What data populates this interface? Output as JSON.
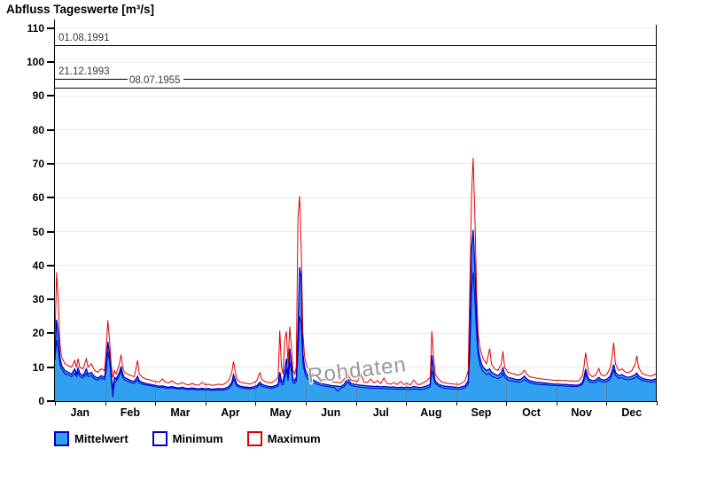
{
  "title": "Abfluss Tageswerte [m³/s]",
  "watermark": "Rohdaten",
  "colors": {
    "area_fill": "#31A0F0",
    "blue_line": "#0000CC",
    "red_line": "#DE0000",
    "grid": "#EAEAEA",
    "axis": "#000000",
    "annotation_text": "#3A3A3A",
    "watermark": "#979797"
  },
  "legend": [
    {
      "label": "Mittelwert",
      "swatch_fill": "#31A0F0",
      "swatch_border": "#0000CC"
    },
    {
      "label": "Minimum",
      "swatch_fill": "#FFFFFF",
      "swatch_border": "#0000CC"
    },
    {
      "label": "Maximum",
      "swatch_fill": "#FFFFFF",
      "swatch_border": "#DE0000"
    }
  ],
  "chart_data": {
    "type": "area",
    "title": "Abfluss Tageswerte [m³/s]",
    "xlabel": "",
    "ylabel": "m³/s",
    "ylim": [
      0,
      110
    ],
    "y_ticks": [
      0,
      10,
      20,
      30,
      40,
      50,
      60,
      70,
      80,
      90,
      100,
      110
    ],
    "x_categories": [
      "Jan",
      "Feb",
      "Mar",
      "Apr",
      "May",
      "Jun",
      "Jul",
      "Aug",
      "Sep",
      "Oct",
      "Nov",
      "Dec"
    ],
    "x_range_days": [
      1,
      365
    ],
    "grid": "horizontal",
    "legend_position": "bottom",
    "annotations": [
      {
        "label": "01.08.1991",
        "value": 105,
        "label_offset": 2
      },
      {
        "label": "21.12.1993",
        "value": 95,
        "label_offset": 2
      },
      {
        "label": "08.07.1955",
        "value": 92.5,
        "label_offset": 82
      }
    ],
    "series_names": [
      "Minimum",
      "Mittelwert",
      "Maximum"
    ],
    "points_format": [
      "day_of_year",
      "minimum",
      "mittelwert",
      "maximum"
    ],
    "points": [
      [
        1,
        12,
        14,
        18
      ],
      [
        2,
        18,
        24,
        38
      ],
      [
        3,
        15,
        20,
        30
      ],
      [
        4,
        11,
        13,
        17
      ],
      [
        5,
        9.5,
        10.5,
        13
      ],
      [
        7,
        8,
        9,
        11
      ],
      [
        9,
        7.8,
        8.5,
        10.5
      ],
      [
        11,
        7.2,
        8,
        10
      ],
      [
        13,
        8.2,
        9.5,
        12
      ],
      [
        14,
        7.2,
        8,
        10
      ],
      [
        15,
        8.5,
        9.8,
        12.5
      ],
      [
        16,
        7.3,
        8.2,
        10
      ],
      [
        18,
        6.8,
        7.5,
        9.5
      ],
      [
        20,
        8.2,
        9.5,
        12.5
      ],
      [
        21,
        7.2,
        8,
        10
      ],
      [
        23,
        7.5,
        8.5,
        11
      ],
      [
        25,
        6.5,
        7.2,
        9
      ],
      [
        27,
        6.2,
        6.8,
        8.5
      ],
      [
        29,
        6.8,
        7.5,
        9.5
      ],
      [
        31,
        6.3,
        7,
        9
      ],
      [
        32,
        9,
        11,
        15
      ],
      [
        33,
        14.5,
        17.5,
        23.8
      ],
      [
        34,
        12,
        14,
        18
      ],
      [
        35,
        6.5,
        8,
        11
      ],
      [
        36,
        1.2,
        3.5,
        7
      ],
      [
        37,
        5.5,
        7,
        9
      ],
      [
        38,
        5.8,
        6.5,
        8
      ],
      [
        40,
        7.5,
        8.5,
        11
      ],
      [
        41,
        9,
        10.2,
        13.7
      ],
      [
        42,
        7,
        8,
        10
      ],
      [
        43,
        6.3,
        7,
        8.5
      ],
      [
        45,
        5.9,
        6.5,
        8
      ],
      [
        47,
        5.4,
        6,
        7.5
      ],
      [
        49,
        5.2,
        5.8,
        7.2
      ],
      [
        51,
        6.3,
        7.3,
        12
      ],
      [
        52,
        5.4,
        6,
        8
      ],
      [
        54,
        5,
        5.5,
        7
      ],
      [
        56,
        4.8,
        5.2,
        6.5
      ],
      [
        58,
        4.6,
        5,
        6.3
      ],
      [
        60,
        4.4,
        4.8,
        6
      ],
      [
        62,
        4.2,
        4.6,
        5.8
      ],
      [
        64,
        4,
        4.4,
        5.6
      ],
      [
        66,
        4.1,
        4.5,
        6.5
      ],
      [
        68,
        3.8,
        4.2,
        5.5
      ],
      [
        70,
        3.8,
        4.1,
        5.4
      ],
      [
        72,
        3.9,
        4.3,
        6
      ],
      [
        74,
        3.7,
        4,
        5.2
      ],
      [
        76,
        3.6,
        3.9,
        5
      ],
      [
        78,
        3.7,
        4.1,
        5.5
      ],
      [
        80,
        3.5,
        3.8,
        5
      ],
      [
        82,
        3.4,
        3.7,
        4.8
      ],
      [
        84,
        3.5,
        3.9,
        5.2
      ],
      [
        86,
        3.4,
        3.7,
        4.8
      ],
      [
        88,
        3.3,
        3.6,
        4.7
      ],
      [
        90,
        3.4,
        3.8,
        5.5
      ],
      [
        92,
        3.3,
        3.6,
        4.8
      ],
      [
        94,
        3.3,
        3.7,
        5
      ],
      [
        96,
        3.2,
        3.5,
        4.6
      ],
      [
        98,
        3.2,
        3.6,
        4.8
      ],
      [
        100,
        3.3,
        3.7,
        5
      ],
      [
        102,
        3.2,
        3.6,
        4.8
      ],
      [
        104,
        3.4,
        3.8,
        5.2
      ],
      [
        106,
        3.7,
        4.2,
        6
      ],
      [
        108,
        4.8,
        5.5,
        8.5
      ],
      [
        109,
        6.5,
        7.8,
        11.7
      ],
      [
        110,
        5.5,
        6.5,
        9
      ],
      [
        111,
        4.4,
        5,
        6.5
      ],
      [
        113,
        4,
        4.4,
        5.6
      ],
      [
        115,
        3.8,
        4.2,
        5.4
      ],
      [
        117,
        3.7,
        4.1,
        5.2
      ],
      [
        119,
        3.6,
        4,
        5
      ],
      [
        121,
        3.7,
        4.2,
        5.4
      ],
      [
        123,
        4,
        4.5,
        6
      ],
      [
        125,
        4.9,
        5.6,
        8.4
      ],
      [
        126,
        4.4,
        5,
        6.5
      ],
      [
        128,
        4.1,
        4.6,
        5.8
      ],
      [
        130,
        3.9,
        4.4,
        5.5
      ],
      [
        132,
        3.8,
        4.2,
        5.4
      ],
      [
        134,
        4,
        4.5,
        6
      ],
      [
        136,
        4.4,
        5,
        7
      ],
      [
        137,
        6.5,
        8.5,
        20.8
      ],
      [
        138,
        5,
        6,
        10
      ],
      [
        139,
        4.8,
        5.5,
        8
      ],
      [
        140,
        7,
        9,
        18
      ],
      [
        141,
        9.5,
        12.5,
        20.5
      ],
      [
        142,
        6,
        7,
        11
      ],
      [
        143,
        11.5,
        15.5,
        22
      ],
      [
        144,
        9,
        11,
        16
      ],
      [
        145,
        5.5,
        6.5,
        9
      ],
      [
        146,
        5.2,
        6,
        8
      ],
      [
        147,
        5.8,
        7,
        10
      ],
      [
        148,
        14,
        20,
        54
      ],
      [
        149,
        25,
        39.5,
        60.5
      ],
      [
        150,
        23,
        36,
        45
      ],
      [
        151,
        11,
        14,
        20
      ],
      [
        152,
        8.5,
        10,
        13
      ],
      [
        153,
        7.2,
        8.5,
        11
      ],
      [
        154,
        6.5,
        7.5,
        9.5
      ],
      [
        156,
        5.8,
        6.5,
        8.5
      ],
      [
        158,
        5.3,
        6,
        7.5
      ],
      [
        160,
        4.9,
        5.5,
        7
      ],
      [
        162,
        4.6,
        5.2,
        6.5
      ],
      [
        164,
        4.4,
        5,
        6.3
      ],
      [
        166,
        4.3,
        4.8,
        6
      ],
      [
        168,
        4.1,
        4.6,
        5.8
      ],
      [
        170,
        4,
        4.5,
        5.6
      ],
      [
        172,
        2.9,
        4.4,
        5.5
      ],
      [
        174,
        3.8,
        4.3,
        5.4
      ],
      [
        176,
        4.3,
        5,
        6.5
      ],
      [
        178,
        5.6,
        6.8,
        8.3
      ],
      [
        179,
        5.2,
        6,
        7
      ],
      [
        180,
        4.6,
        5.2,
        6.2
      ],
      [
        182,
        4.4,
        5,
        6
      ],
      [
        184,
        4.2,
        4.8,
        5.8
      ],
      [
        186,
        4.1,
        4.7,
        8
      ],
      [
        188,
        4,
        4.6,
        5.6
      ],
      [
        190,
        3.9,
        4.5,
        5.5
      ],
      [
        192,
        3.8,
        4.4,
        6.5
      ],
      [
        194,
        3.8,
        4.3,
        5.4
      ],
      [
        196,
        3.8,
        4.4,
        6
      ],
      [
        198,
        3.7,
        4.2,
        5.2
      ],
      [
        200,
        3.7,
        4.3,
        6.8
      ],
      [
        202,
        3.6,
        4.2,
        5.2
      ],
      [
        204,
        3.6,
        4.1,
        5
      ],
      [
        206,
        3.6,
        4.2,
        5.5
      ],
      [
        208,
        3.5,
        4,
        4.9
      ],
      [
        210,
        3.5,
        4.1,
        5.8
      ],
      [
        212,
        3.5,
        4,
        4.9
      ],
      [
        214,
        3.5,
        4.1,
        5.2
      ],
      [
        216,
        3.4,
        4,
        4.8
      ],
      [
        218,
        3.6,
        4.3,
        6.2
      ],
      [
        220,
        3.5,
        4.1,
        5
      ],
      [
        222,
        3.4,
        4,
        4.9
      ],
      [
        224,
        3.5,
        4.2,
        5.5
      ],
      [
        226,
        3.8,
        4.5,
        6
      ],
      [
        228,
        4.2,
        5,
        7
      ],
      [
        229,
        9,
        13.5,
        20.6
      ],
      [
        230,
        7,
        9,
        13
      ],
      [
        231,
        5.2,
        6,
        8
      ],
      [
        233,
        4.4,
        5,
        6.5
      ],
      [
        235,
        4,
        4.6,
        5.6
      ],
      [
        237,
        3.8,
        4.4,
        5.4
      ],
      [
        239,
        3.7,
        4.3,
        5.2
      ],
      [
        241,
        3.6,
        4.2,
        5.1
      ],
      [
        243,
        3.6,
        4.1,
        5
      ],
      [
        245,
        3.5,
        4,
        4.9
      ],
      [
        247,
        3.6,
        4.2,
        5.2
      ],
      [
        249,
        3.9,
        4.5,
        6
      ],
      [
        251,
        5,
        6,
        9
      ],
      [
        252,
        14,
        20,
        35
      ],
      [
        253,
        32,
        45,
        61
      ],
      [
        254,
        38,
        50.5,
        71.7
      ],
      [
        255,
        30,
        40,
        55
      ],
      [
        256,
        20,
        25,
        33
      ],
      [
        257,
        13.5,
        16,
        20
      ],
      [
        258,
        11,
        13,
        16
      ],
      [
        259,
        9.5,
        11,
        14
      ],
      [
        260,
        8.8,
        10,
        12.5
      ],
      [
        262,
        7.8,
        9,
        11
      ],
      [
        264,
        8.2,
        9.5,
        15.5
      ],
      [
        265,
        7.4,
        8.5,
        11
      ],
      [
        267,
        7,
        8,
        9.5
      ],
      [
        269,
        6.6,
        7.5,
        9
      ],
      [
        271,
        7.2,
        8.5,
        11
      ],
      [
        272,
        8.2,
        9.8,
        14.7
      ],
      [
        273,
        7,
        8,
        10
      ],
      [
        275,
        6.2,
        7,
        8.5
      ],
      [
        277,
        6,
        6.8,
        8.2
      ],
      [
        279,
        5.8,
        6.5,
        8
      ],
      [
        281,
        5.6,
        6.3,
        7.6
      ],
      [
        283,
        5.7,
        6.5,
        8
      ],
      [
        285,
        6.4,
        7.4,
        9.1
      ],
      [
        286,
        6,
        6.8,
        8.2
      ],
      [
        288,
        5.4,
        6,
        7.2
      ],
      [
        290,
        5.2,
        5.8,
        7
      ],
      [
        292,
        5,
        5.6,
        6.8
      ],
      [
        294,
        4.9,
        5.5,
        6.6
      ],
      [
        296,
        4.8,
        5.4,
        6.5
      ],
      [
        298,
        4.8,
        5.3,
        6.4
      ],
      [
        300,
        4.7,
        5.2,
        6.3
      ],
      [
        302,
        4.6,
        5.1,
        6.2
      ],
      [
        304,
        4.6,
        5,
        6.1
      ],
      [
        306,
        4.5,
        5,
        6.2
      ],
      [
        308,
        4.5,
        4.9,
        6
      ],
      [
        310,
        4.4,
        4.9,
        6.1
      ],
      [
        312,
        4.4,
        4.8,
        5.9
      ],
      [
        314,
        4.3,
        4.8,
        6
      ],
      [
        316,
        4.3,
        4.7,
        5.8
      ],
      [
        318,
        4.4,
        4.8,
        6
      ],
      [
        320,
        4.9,
        5.5,
        7.5
      ],
      [
        321,
        6,
        7,
        10
      ],
      [
        322,
        8,
        9.5,
        14.3
      ],
      [
        323,
        6.6,
        7.5,
        10.5
      ],
      [
        324,
        5.8,
        6.5,
        8
      ],
      [
        326,
        5.4,
        6,
        7.2
      ],
      [
        328,
        5.5,
        6.2,
        7.6
      ],
      [
        330,
        6.2,
        7,
        9.6
      ],
      [
        331,
        5.8,
        6.5,
        8
      ],
      [
        333,
        5.6,
        6.2,
        7.4
      ],
      [
        335,
        5.8,
        6.5,
        8
      ],
      [
        337,
        6.6,
        7.5,
        10
      ],
      [
        338,
        7.8,
        9,
        13
      ],
      [
        339,
        9.2,
        10.8,
        17.2
      ],
      [
        340,
        7.6,
        8.5,
        11
      ],
      [
        342,
        6.7,
        7.5,
        9
      ],
      [
        344,
        6.9,
        7.8,
        9.5
      ],
      [
        346,
        6.4,
        7.2,
        8.6
      ],
      [
        348,
        6.3,
        7,
        8.4
      ],
      [
        350,
        6.5,
        7.3,
        9
      ],
      [
        352,
        6.9,
        7.8,
        11
      ],
      [
        353,
        7.3,
        8.3,
        13.4
      ],
      [
        354,
        6.7,
        7.5,
        10
      ],
      [
        356,
        6.1,
        6.8,
        8.2
      ],
      [
        358,
        5.9,
        6.5,
        7.8
      ],
      [
        360,
        5.7,
        6.3,
        7.5
      ],
      [
        362,
        5.6,
        6.2,
        7.4
      ],
      [
        364,
        5.8,
        6.5,
        8
      ],
      [
        365,
        5.7,
        6.3,
        7.6
      ]
    ]
  }
}
